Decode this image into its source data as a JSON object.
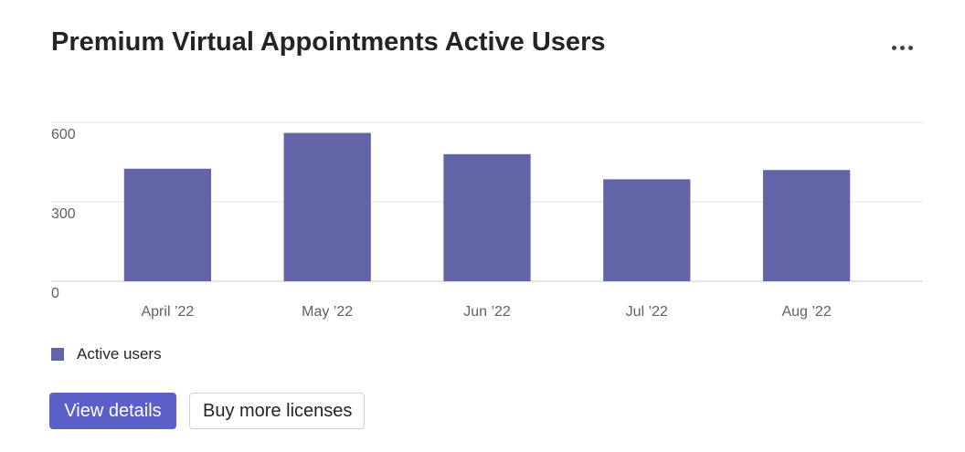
{
  "card": {
    "title": "Premium Virtual Appointments Active Users",
    "more_icon": "more-horizontal-icon"
  },
  "chart_data": {
    "type": "bar",
    "categories": [
      "April ’22",
      "May ’22",
      "Jun ’22",
      "Jul ’22",
      "Aug ’22"
    ],
    "series": [
      {
        "name": "Active users",
        "values": [
          425,
          560,
          480,
          385,
          420
        ],
        "color": "#6264a7"
      }
    ],
    "yticks": [
      0,
      300,
      600
    ],
    "ylim": [
      0,
      600
    ],
    "grid": true,
    "legend": "bottom-left"
  },
  "legend": {
    "label": "Active users",
    "color": "#6264a7"
  },
  "actions": {
    "view_details_label": "View details",
    "buy_licenses_label": "Buy more licenses"
  },
  "colors": {
    "accent": "#5b5fc7",
    "bar": "#6264a7"
  }
}
